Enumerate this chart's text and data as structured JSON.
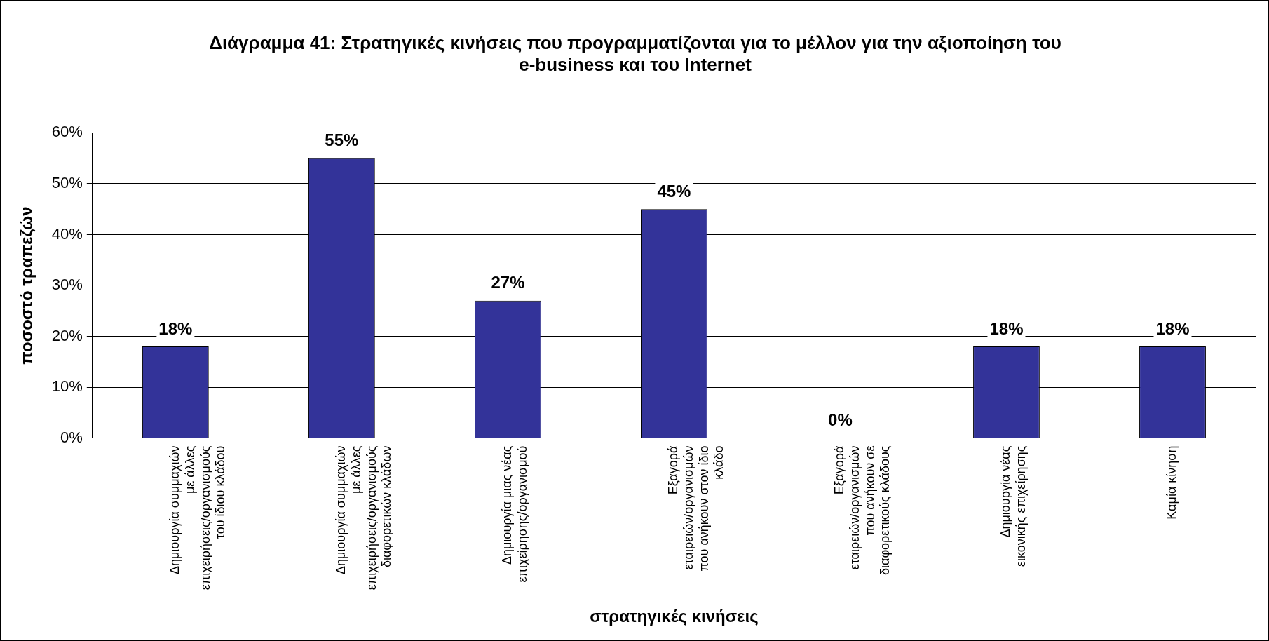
{
  "chart_data": {
    "type": "bar",
    "title": "Διάγραμμα 41: Στρατηγικές κινήσεις που προγραμματίζονται για το μέλλον για την αξιοποίηση του e-business και του Internet",
    "xlabel": "στρατηγικές κινήσεις",
    "ylabel": "ποσοστό τραπεζών",
    "categories": [
      "Δημιουργία συμμαχιών με άλλες επιχειρήσεις/οργανισμούς του ίδιου κλάδου",
      "Δημιουργία συμμαχιών με άλλες επιχειρήσεις/οργανισμούς διαφορετικών κλάδων",
      "Δημιουργία μιας νέας επιχείρησης/οργανισμού",
      "Εξαγορά εταιρειών/οργανισμών που ανήκουν στον ίδιο κλάδο",
      "Εξαγορά εταιρειών/οργανισμών που ανήκουν σε διαφορετικούς κλάδους",
      "Δημιουργία νέας εικονικής επιχείρησης",
      "Καμία κίνηση"
    ],
    "values": [
      18,
      55,
      27,
      45,
      0,
      18,
      18
    ],
    "color": "#333399",
    "ylim": [
      0,
      60
    ],
    "yticks": [
      {
        "value": 0,
        "label": "0%"
      },
      {
        "value": 10,
        "label": "10%"
      },
      {
        "value": 20,
        "label": "20%"
      },
      {
        "value": 30,
        "label": "30%"
      },
      {
        "value": 40,
        "label": "40%"
      },
      {
        "value": 50,
        "label": "50%"
      },
      {
        "value": 60,
        "label": "60%"
      }
    ],
    "grid": "y",
    "value_labels": [
      "18%",
      "55%",
      "27%",
      "45%",
      "0%",
      "18%",
      "18%"
    ],
    "legend": false
  }
}
